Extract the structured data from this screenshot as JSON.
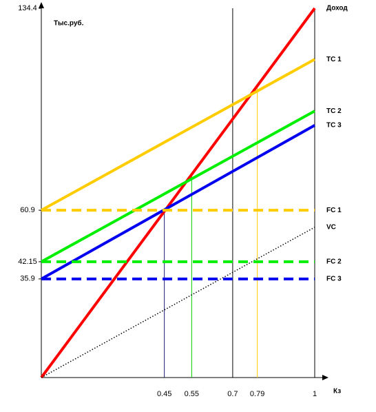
{
  "chart_data": {
    "type": "line",
    "y_label": "Тыс.руб.",
    "x_label": "Кз",
    "xlim": [
      0,
      1
    ],
    "ylim": [
      0,
      134.4
    ],
    "xticks": [
      0.45,
      0.55,
      0.7,
      0.79,
      1
    ],
    "guide_colors": [
      "#1a1a6e",
      "#00cc00",
      "#000000",
      "#ffcc00"
    ],
    "yticks": [
      35.9,
      42.15,
      60.9,
      134.4
    ],
    "series": [
      {
        "name": "Доход",
        "color": "#ff0000",
        "style": "solid",
        "x": [
          0,
          1
        ],
        "values": [
          0,
          134.4
        ]
      },
      {
        "name": "TC 1",
        "color": "#ffcc00",
        "style": "solid",
        "x": [
          0,
          1
        ],
        "values": [
          60.9,
          115.8
        ]
      },
      {
        "name": "TC 2",
        "color": "#00ee00",
        "style": "solid",
        "x": [
          0,
          1
        ],
        "values": [
          42.15,
          97
        ]
      },
      {
        "name": "TC 3",
        "color": "#0000ee",
        "style": "solid",
        "x": [
          0,
          1
        ],
        "values": [
          35.9,
          91.8
        ]
      },
      {
        "name": "FC 1",
        "color": "#ffcc00",
        "style": "dashed",
        "x": [
          0,
          1
        ],
        "values": [
          60.9,
          60.9
        ]
      },
      {
        "name": "VC",
        "color": "#000000",
        "style": "dotted",
        "x": [
          0,
          1
        ],
        "values": [
          0,
          54.7
        ]
      },
      {
        "name": "FC 2",
        "color": "#00ee00",
        "style": "dashed",
        "x": [
          0,
          1
        ],
        "values": [
          42.15,
          42.15
        ]
      },
      {
        "name": "FC 3",
        "color": "#0000ee",
        "style": "dashed",
        "x": [
          0,
          1
        ],
        "values": [
          35.9,
          35.9
        ]
      }
    ]
  }
}
